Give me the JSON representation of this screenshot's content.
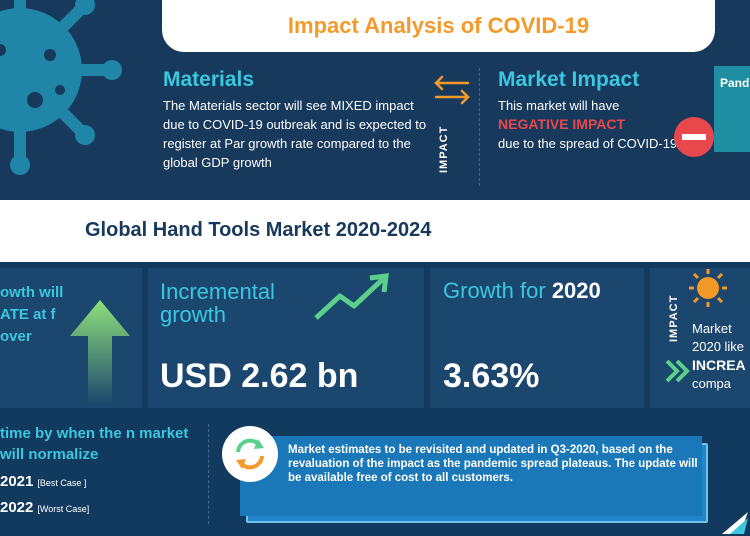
{
  "title": "Impact Analysis of COVID-19",
  "materials": {
    "heading": "Materials",
    "text": "The Materials sector will see MIXED  impact due to COVID-19 outbreak and is expected to register at Par growth rate compared to the global GDP growth"
  },
  "impact_label": "IMPACT",
  "market_impact": {
    "heading": "Market Impact",
    "text_before": "This market will have",
    "highlight": "NEGATIVE IMPACT",
    "text_after": "due to the spread of COVID-19"
  },
  "pan_card_text": "Pand",
  "band_title": "Global Hand Tools Market 2020-2024",
  "left_growth_text": "owth will ATE at f over",
  "incremental": {
    "title_line1": "Incremental",
    "title_line2": "growth",
    "value": "USD 2.62 bn"
  },
  "growth": {
    "title_prefix": "Growth for ",
    "title_year": "2020",
    "value": "3.63%"
  },
  "right_panel": {
    "impact_label": "IMPACT",
    "line1": "Market",
    "line2": "2020 like",
    "highlight": "INCREA",
    "line3": "compa"
  },
  "normalize": {
    "question": "time by when the n market will normalize",
    "best_year": "2021",
    "best_label": "[Best Case ]",
    "worst_year": "2022",
    "worst_label": "[Worst Case]"
  },
  "note": "Market estimates to be revisited and updated in Q3-2020, based on the revaluation of the impact as the pandemic spread plateaus. The update will be available free of cost to all customers.",
  "colors": {
    "navy": "#12395e",
    "cyan": "#3cc6df",
    "orange": "#f39a2a",
    "red": "#e8474b",
    "green": "#5bd08a",
    "blue": "#1a78b9"
  },
  "icons": [
    "virus-icon",
    "swap-arrows-icon",
    "minus-icon",
    "up-arrow-icon",
    "trend-chart-icon",
    "sun-icon",
    "chevron-icon",
    "refresh-icon",
    "logo-icon"
  ]
}
